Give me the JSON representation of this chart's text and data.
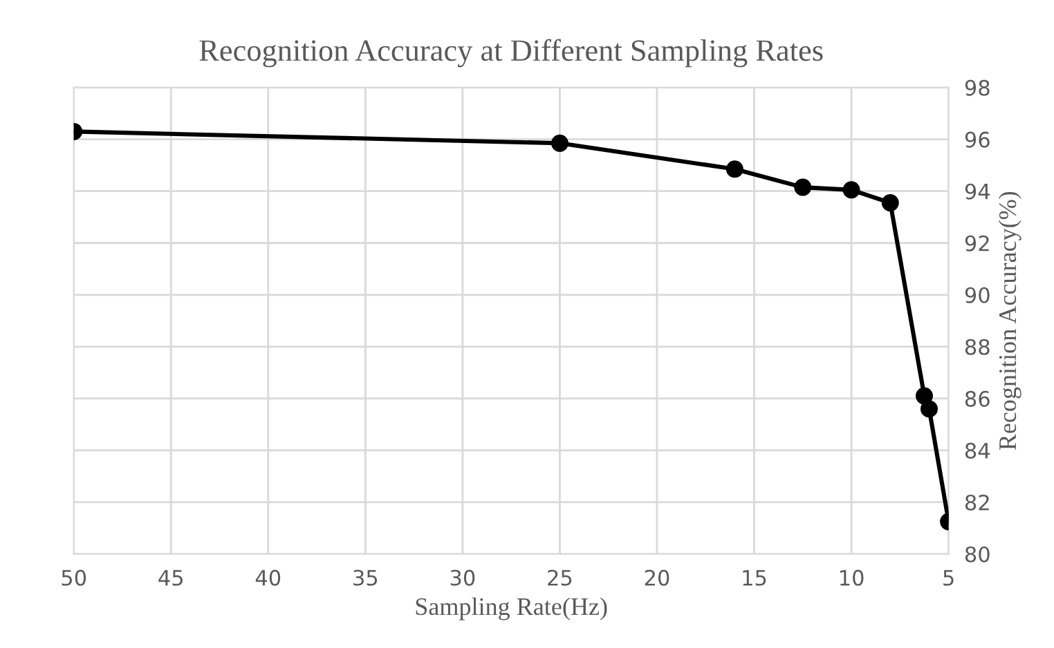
{
  "chart_data": {
    "type": "line",
    "title": "Recognition Accuracy at Different Sampling Rates",
    "xlabel": "Sampling Rate(Hz)",
    "ylabel": "Recognition Accuracy(%)",
    "x": [
      50,
      25,
      16,
      12.5,
      10,
      8,
      6.25,
      6,
      5
    ],
    "series": [
      {
        "color": "#000000",
        "values": [
          96.3,
          95.85,
          94.85,
          94.15,
          94.05,
          93.55,
          86.1,
          85.6,
          81.25
        ]
      }
    ],
    "xlim": [
      50,
      5
    ],
    "xticks": [
      50,
      45,
      40,
      35,
      30,
      25,
      20,
      15,
      10,
      5
    ],
    "ylim": [
      80,
      98
    ],
    "yticks": [
      80,
      82,
      84,
      86,
      88,
      90,
      92,
      94,
      96,
      98
    ],
    "grid": true,
    "marker": "circle",
    "line_style": "solid"
  }
}
